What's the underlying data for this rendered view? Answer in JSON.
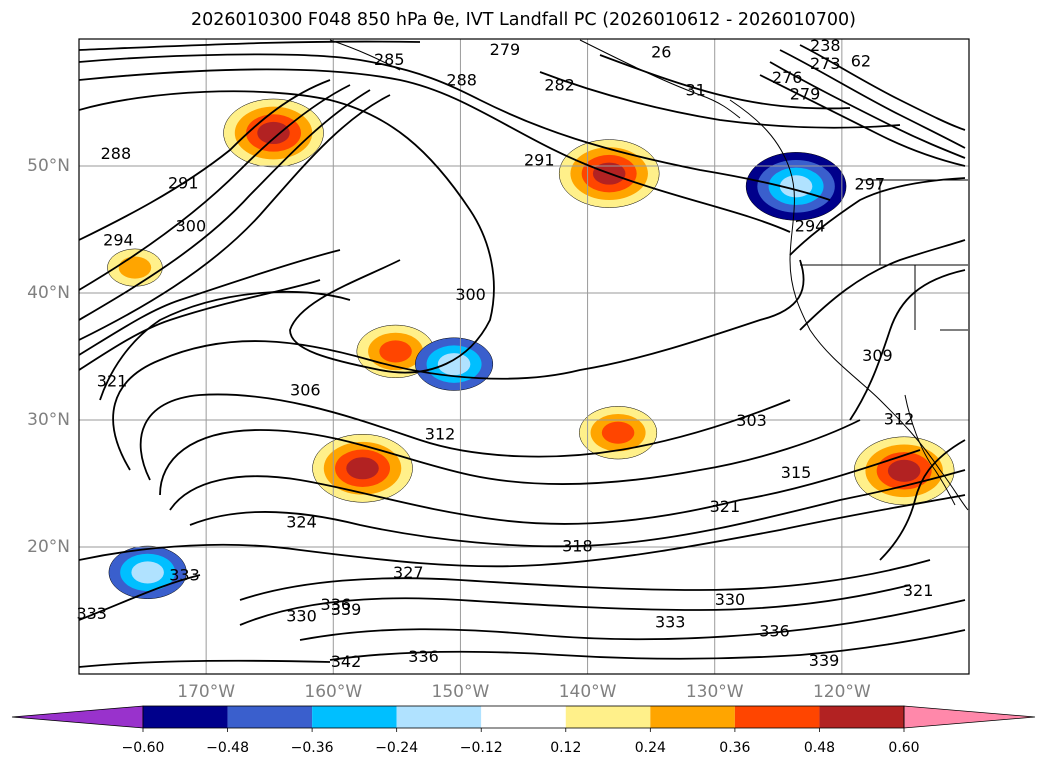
{
  "title": "2026010300 F048 850 hPa θe, IVT Landfall PC (2026010612 - 2026010700)",
  "map": {
    "lon_range": [
      -180,
      -110
    ],
    "lat_range": [
      10,
      60
    ],
    "gridlines": true,
    "lat_ticks": [
      "50°N",
      "40°N",
      "30°N",
      "20°N"
    ],
    "lon_ticks": [
      "170°W",
      "160°W",
      "150°W",
      "140°W",
      "130°W",
      "120°W"
    ]
  },
  "contour_labels": [
    {
      "text": "279",
      "lon": -146.5,
      "lat": 59.1
    },
    {
      "text": "282",
      "lon": -142.2,
      "lat": 56.3
    },
    {
      "text": "288",
      "lon": -149.9,
      "lat": 56.7
    },
    {
      "text": "285",
      "lon": -155.6,
      "lat": 58.3
    },
    {
      "text": "291",
      "lon": -143.8,
      "lat": 50.4
    },
    {
      "text": "294",
      "lon": -122.5,
      "lat": 45.2
    },
    {
      "text": "297",
      "lon": -117.8,
      "lat": 48.5
    },
    {
      "text": "300",
      "lon": -149.2,
      "lat": 39.8
    },
    {
      "text": "288",
      "lon": -177.1,
      "lat": 50.9
    },
    {
      "text": "291",
      "lon": -171.8,
      "lat": 48.6
    },
    {
      "text": "294",
      "lon": -176.9,
      "lat": 44.1
    },
    {
      "text": "300",
      "lon": -171.2,
      "lat": 45.2
    },
    {
      "text": "306",
      "lon": -162.2,
      "lat": 32.3
    },
    {
      "text": "312",
      "lon": -151.6,
      "lat": 28.8
    },
    {
      "text": "303",
      "lon": -127.1,
      "lat": 29.9
    },
    {
      "text": "315",
      "lon": -123.6,
      "lat": 25.8
    },
    {
      "text": "321",
      "lon": -129.2,
      "lat": 23.1
    },
    {
      "text": "324",
      "lon": -162.5,
      "lat": 21.9
    },
    {
      "text": "318",
      "lon": -140.8,
      "lat": 20.0
    },
    {
      "text": "327",
      "lon": -154.1,
      "lat": 17.9
    },
    {
      "text": "333",
      "lon": -171.7,
      "lat": 17.7
    },
    {
      "text": "330",
      "lon": -128.8,
      "lat": 15.8
    },
    {
      "text": "336",
      "lon": -159.8,
      "lat": 15.4
    },
    {
      "text": "339",
      "lon": -159.0,
      "lat": 15.0
    },
    {
      "text": "330",
      "lon": -162.5,
      "lat": 14.5
    },
    {
      "text": "333",
      "lon": -133.5,
      "lat": 14.0
    },
    {
      "text": "333",
      "lon": -179.0,
      "lat": 14.7
    },
    {
      "text": "336",
      "lon": -125.3,
      "lat": 13.3
    },
    {
      "text": "339",
      "lon": -121.4,
      "lat": 11.0
    },
    {
      "text": "336",
      "lon": -152.9,
      "lat": 11.3
    },
    {
      "text": "342",
      "lon": -159.0,
      "lat": 10.9
    },
    {
      "text": "321",
      "lon": -177.4,
      "lat": 33.0
    },
    {
      "text": "321",
      "lon": -114.0,
      "lat": 16.5
    },
    {
      "text": "309",
      "lon": -117.2,
      "lat": 35.0
    },
    {
      "text": "312",
      "lon": -115.5,
      "lat": 30.0
    },
    {
      "text": "276",
      "lon": -124.3,
      "lat": 56.9
    },
    {
      "text": "279",
      "lon": -122.9,
      "lat": 55.6
    },
    {
      "text": "273",
      "lon": -121.3,
      "lat": 58.0
    },
    {
      "text": "238",
      "lon": -121.3,
      "lat": 59.4
    },
    {
      "text": "26",
      "lon": -134.2,
      "lat": 58.9
    },
    {
      "text": "31",
      "lon": -131.5,
      "lat": 55.9
    },
    {
      "text": "62",
      "lon": -118.5,
      "lat": 58.2
    }
  ],
  "shaded_anomalies": [
    {
      "lon": -164.7,
      "lat": 52.6,
      "level": 0.48
    },
    {
      "lon": -138.3,
      "lat": 49.4,
      "level": 0.48
    },
    {
      "lon": -157.7,
      "lat": 26.2,
      "level": 0.48
    },
    {
      "lon": -137.6,
      "lat": 29.0,
      "level": 0.36
    },
    {
      "lon": -155.1,
      "lat": 35.4,
      "level": 0.36
    },
    {
      "lon": -175.6,
      "lat": 42.0,
      "level": 0.24
    },
    {
      "lon": -115.1,
      "lat": 26.0,
      "level": 0.48
    },
    {
      "lon": -150.5,
      "lat": 34.4,
      "level": -0.48
    },
    {
      "lon": -123.6,
      "lat": 48.4,
      "level": -0.6
    },
    {
      "lon": -174.6,
      "lat": 18.0,
      "level": -0.48
    }
  ],
  "colorbar": {
    "colors": [
      "#9932cc",
      "#00008b",
      "#3a5fcd",
      "#00bfff",
      "#b0e2ff",
      "#ffffff",
      "#fff08a",
      "#ffa500",
      "#ff4500",
      "#b22222",
      "#ff88aa"
    ],
    "tick_labels": [
      "−0.60",
      "−0.48",
      "−0.36",
      "−0.24",
      "−0.12",
      "0.12",
      "0.24",
      "0.36",
      "0.48",
      "0.60"
    ]
  }
}
